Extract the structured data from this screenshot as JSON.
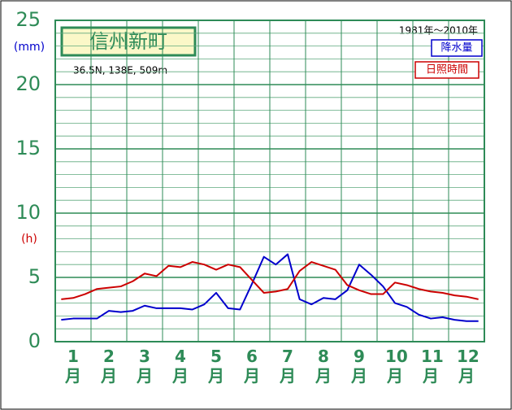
{
  "chart_data": {
    "type": "line",
    "title": "信州新町",
    "subtitle": "36.5N, 138E, 509m",
    "period": "1981年〜2010年",
    "y_unit_labels": [
      {
        "text": "(mm)",
        "color": "#0000cc"
      },
      {
        "text": "(h)",
        "color": "#cc0000"
      }
    ],
    "categories": [
      null,
      "1月",
      null,
      null,
      "2月",
      null,
      null,
      "3月",
      null,
      null,
      "4月",
      null,
      null,
      "5月",
      null,
      null,
      "6月",
      null,
      null,
      "7月",
      null,
      null,
      "8月",
      null,
      null,
      "9月",
      null,
      null,
      "10月",
      null,
      null,
      "11月",
      null,
      null,
      "12月",
      null
    ],
    "series": [
      {
        "name": "降水量",
        "color": "#0000cc",
        "values": [
          1.7,
          1.8,
          1.8,
          1.8,
          2.4,
          2.3,
          2.4,
          2.8,
          2.6,
          2.6,
          2.6,
          2.5,
          2.9,
          3.8,
          2.6,
          2.5,
          4.5,
          6.6,
          6.0,
          6.8,
          3.3,
          2.9,
          3.4,
          3.3,
          4.0,
          6.0,
          5.2,
          4.3,
          3.0,
          2.7,
          2.1,
          1.8,
          1.9,
          1.7,
          1.6,
          1.6
        ]
      },
      {
        "name": "日照時間",
        "color": "#cc0000",
        "values": [
          3.3,
          3.4,
          3.7,
          4.1,
          4.2,
          4.3,
          4.7,
          5.3,
          5.1,
          5.9,
          5.8,
          6.2,
          6.0,
          5.6,
          6.0,
          5.8,
          4.8,
          3.8,
          3.9,
          4.1,
          5.5,
          6.2,
          5.9,
          5.6,
          4.4,
          4.0,
          3.7,
          3.7,
          4.6,
          4.4,
          4.1,
          3.9,
          3.8,
          3.6,
          3.5,
          3.3
        ]
      }
    ],
    "ylim": [
      0,
      25
    ],
    "yticks": [
      0,
      5,
      10,
      15,
      20,
      25
    ],
    "minor_ystep": 1,
    "grid": true
  }
}
